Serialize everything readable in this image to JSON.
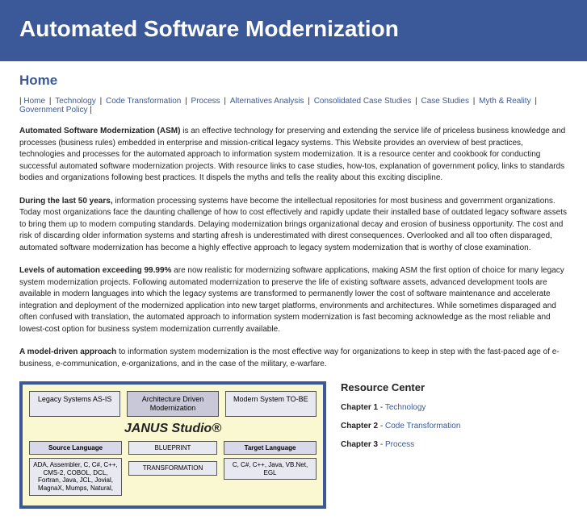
{
  "header": {
    "title": "Automated Software Modernization"
  },
  "page": {
    "title": "Home"
  },
  "nav": {
    "items": [
      "Home",
      "Technology",
      "Code Transformation",
      "Process",
      "Alternatives Analysis",
      "Consolidated Case Studies",
      "Case Studies",
      "Myth & Reality",
      "Government Policy"
    ]
  },
  "paragraphs": {
    "p1_bold": "Automated Software Modernization (ASM)",
    "p1_rest": " is an effective technology for preserving and extending the service life of priceless business knowledge and processes (business rules) embedded in enterprise and mission-critical legacy systems. This Website provides an overview of best practices, technologies and processes for the automated approach to information system modernization. It is a resource center and cookbook for conducting successful automated software modernization projects. With resource links to case studies, how-tos, explanation of government policy, links to standards bodies and organizations following best practices. It dispels the myths and tells the reality about this exciting discipline.",
    "p2_bold": "During the last 50 years,",
    "p2_rest": " information processing systems have become the intellectual repositories for most business and government organizations. Today most organizations face the daunting challenge of how to cost effectively and rapidly update their installed base of outdated legacy software assets to bring them up to modern computing standards. Delaying modernization brings organizational decay and erosion of business opportunity. The cost and risk of discarding older information systems and starting afresh is underestimated with direst consequences. Overlooked and all too often disparaged, automated software modernization has become a highly effective approach to legacy system modernization that is worthy of close examination.",
    "p3_bold": "Levels of automation exceeding 99.99%",
    "p3_rest": " are now realistic for modernizing software applications, making ASM the first option of choice for many legacy system modernization projects. Following automated modernization to preserve the life of existing software assets, advanced development tools are available in modern languages into which the legacy systems are transformed to permanently lower the cost of software maintenance and accelerate integration and deployment of the modernized application into new target platforms, environments and architectures. While sometimes disparaged and often confused with translation, the automated approach to information system modernization is fast becoming acknowledge as the most reliable and lowest-cost option for business system modernization currently available.",
    "p4_bold": "A model-driven approach",
    "p4_rest": " to information system modernization is the most effective way for organizations to keep in step with the fast-paced age of e-business, e-communication, e-organizations, and in the case of the military, e-warfare."
  },
  "diagram": {
    "top": [
      "Legacy Systems\nAS-IS",
      "Architecture Driven\nModernization",
      "Modern System\nTO-BE"
    ],
    "brand": "JANUS Studio®",
    "left_hdr": "Source Language",
    "left_body": "ADA, Assembler, C, C#, C++, CMS-2, COBOL, DCL, Fortran, Java, JCL, Jovial, MagnaX, Mumps, Natural,",
    "mid1": "BLUEPRINT",
    "mid2": "TRANSFORMATION",
    "right_hdr": "Target Language",
    "right_body": "C, C#, C++, Java, VB.Net, EGL"
  },
  "resource": {
    "title": "Resource Center",
    "chapters": [
      {
        "num": "Chapter 1",
        "link": "Technology"
      },
      {
        "num": "Chapter 2",
        "link": "Code Transformation"
      },
      {
        "num": "Chapter 3",
        "link": "Process"
      }
    ]
  }
}
